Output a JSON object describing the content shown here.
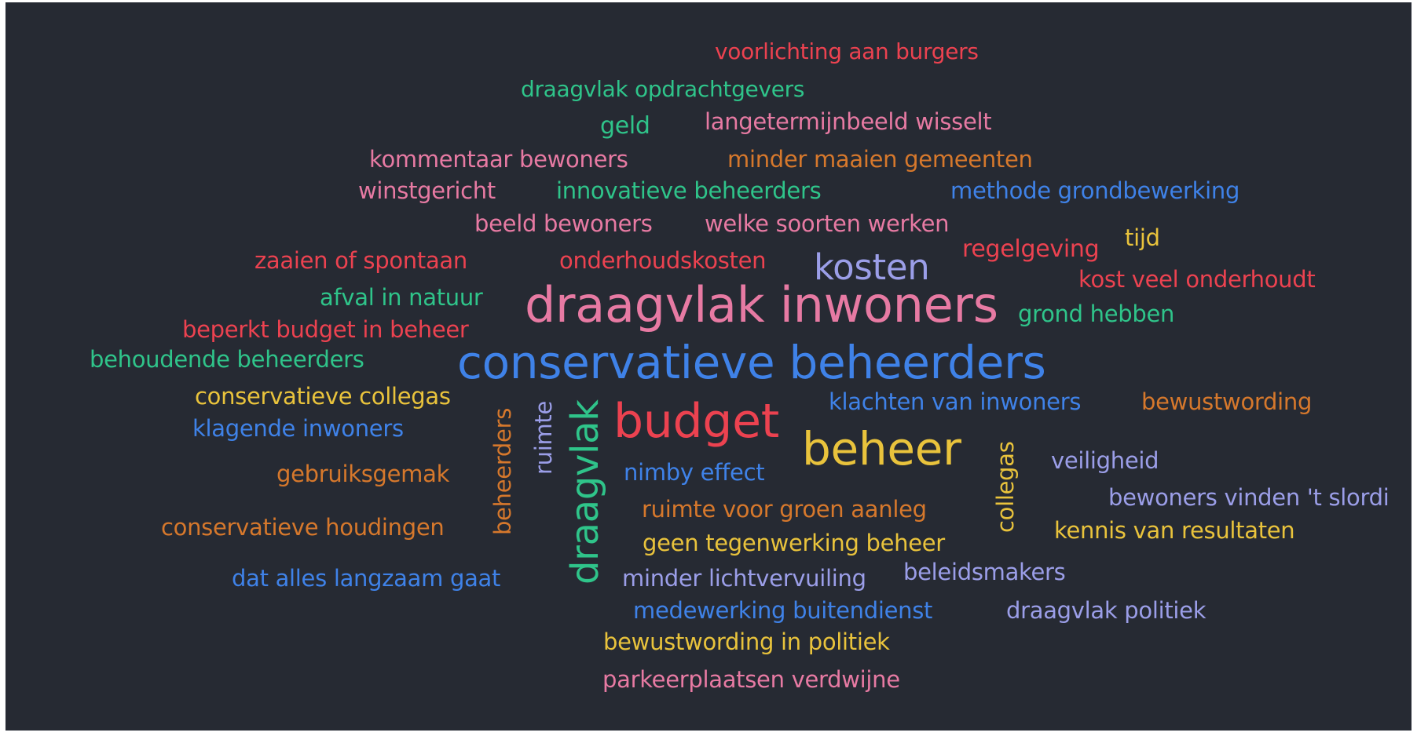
{
  "word_cloud": {
    "colors": {
      "background": "#262a33",
      "red": "#ec4250",
      "green": "#2fc48a",
      "pink": "#e77aa3",
      "orange": "#d6782c",
      "blue": "#3f82e8",
      "purple": "#9b9ee8",
      "yellow": "#e9c33c"
    },
    "words": [
      "voorlichting aan burgers",
      "draagvlak opdrachtgevers",
      "geld",
      "langetermijnbeeld wisselt",
      "kommentaar bewoners",
      "minder maaien gemeenten",
      "winstgericht",
      "innovatieve beheerders",
      "methode grondbewerking",
      "beeld bewoners",
      "welke soorten werken",
      "tijd",
      "regelgeving",
      "zaaien of spontaan",
      "onderhoudskosten",
      "kosten",
      "kost veel onderhoudt",
      "afval in natuur",
      "draagvlak inwoners",
      "grond hebben",
      "beperkt budget in beheer",
      "behoudende beheerders",
      "conservatieve beheerders",
      "conservatieve collegas",
      "klachten van inwoners",
      "bewustwording",
      "klagende inwoners",
      "budget",
      "beheer",
      "beheerders",
      "ruimte",
      "draagvlak",
      "collegas",
      "veiligheid",
      "gebruiksgemak",
      "nimby effect",
      "bewoners vinden 't slordi",
      "ruimte voor groen aanleg",
      "conservatieve houdingen",
      "kennis van resultaten",
      "geen tegenwerking beheer",
      "dat alles langzaam gaat",
      "minder lichtvervuiling",
      "beleidsmakers",
      "medewerking buitendienst",
      "draagvlak politiek",
      "bewustwording in politiek",
      "parkeerplaatsen verdwijne"
    ]
  }
}
